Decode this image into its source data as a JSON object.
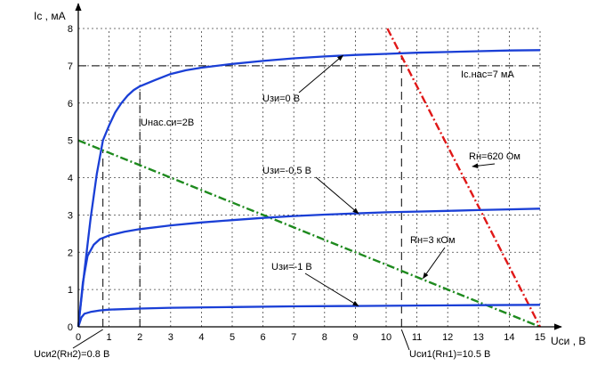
{
  "chart_data": {
    "type": "line",
    "ylabel": "Ic , мА",
    "xlabel": "Uси , В",
    "xlim": [
      0,
      15
    ],
    "ylim": [
      0,
      8
    ],
    "x_ticks": [
      "0",
      "1",
      "2",
      "3",
      "4",
      "5",
      "6",
      "7",
      "8",
      "9",
      "10",
      "11",
      "12",
      "13",
      "14",
      "15"
    ],
    "y_ticks": [
      "0",
      "1",
      "2",
      "3",
      "4",
      "5",
      "6",
      "7",
      "8"
    ],
    "grid": true,
    "series": [
      {
        "name": "Uзи=0 В",
        "color": "#1a3fd6",
        "points": [
          [
            0,
            0
          ],
          [
            0.2,
            1.5
          ],
          [
            0.4,
            2.9
          ],
          [
            0.6,
            4.1
          ],
          [
            0.8,
            5.0
          ],
          [
            1.0,
            5.4
          ],
          [
            1.2,
            5.75
          ],
          [
            1.4,
            6.0
          ],
          [
            1.6,
            6.2
          ],
          [
            1.8,
            6.35
          ],
          [
            2.0,
            6.45
          ],
          [
            2.5,
            6.62
          ],
          [
            3,
            6.78
          ],
          [
            3.5,
            6.88
          ],
          [
            4,
            6.95
          ],
          [
            5,
            7.05
          ],
          [
            6,
            7.13
          ],
          [
            7,
            7.2
          ],
          [
            8,
            7.25
          ],
          [
            9,
            7.29
          ],
          [
            10,
            7.32
          ],
          [
            11,
            7.35
          ],
          [
            12,
            7.37
          ],
          [
            13,
            7.39
          ],
          [
            14,
            7.41
          ],
          [
            15,
            7.42
          ]
        ]
      },
      {
        "name": "Uзи=-0,5 В",
        "color": "#1a3fd6",
        "points": [
          [
            0,
            0
          ],
          [
            0.15,
            1.2
          ],
          [
            0.3,
            1.9
          ],
          [
            0.5,
            2.2
          ],
          [
            0.7,
            2.35
          ],
          [
            1,
            2.45
          ],
          [
            1.5,
            2.55
          ],
          [
            2,
            2.62
          ],
          [
            3,
            2.72
          ],
          [
            4,
            2.8
          ],
          [
            5,
            2.86
          ],
          [
            6,
            2.92
          ],
          [
            7,
            2.97
          ],
          [
            8,
            3.01
          ],
          [
            9,
            3.04
          ],
          [
            10,
            3.07
          ],
          [
            11,
            3.09
          ],
          [
            12,
            3.11
          ],
          [
            13,
            3.13
          ],
          [
            14,
            3.15
          ],
          [
            15,
            3.17
          ]
        ]
      },
      {
        "name": "Uзи=-1 В",
        "color": "#1a3fd6",
        "points": [
          [
            0,
            0
          ],
          [
            0.1,
            0.25
          ],
          [
            0.2,
            0.35
          ],
          [
            0.4,
            0.4
          ],
          [
            0.7,
            0.44
          ],
          [
            1,
            0.46
          ],
          [
            2,
            0.49
          ],
          [
            3,
            0.51
          ],
          [
            5,
            0.53
          ],
          [
            7,
            0.55
          ],
          [
            9,
            0.56
          ],
          [
            11,
            0.57
          ],
          [
            13,
            0.58
          ],
          [
            15,
            0.59
          ]
        ]
      }
    ],
    "load_lines": [
      {
        "name": "Rн=3 кОм",
        "color": "#1e8a1e",
        "points": [
          [
            0,
            5
          ],
          [
            15,
            0
          ]
        ]
      },
      {
        "name": "Rн=620 Ом",
        "color": "#e01818",
        "points": [
          [
            10.04,
            8
          ],
          [
            15,
            0
          ]
        ]
      }
    ],
    "dashed_lines": [
      {
        "orientation": "vertical",
        "x": 0.8,
        "y_max": 4.73
      },
      {
        "orientation": "vertical",
        "x": 2,
        "y_max": 6.45
      },
      {
        "orientation": "vertical",
        "x": 10.5,
        "y_max": 7.25
      },
      {
        "orientation": "horizontal",
        "y": 7
      }
    ],
    "annotations": [
      {
        "text": "Uзи=0 В",
        "arrow_to": [
          8.6,
          7.28
        ]
      },
      {
        "text": "Uзи=-0,5 В",
        "arrow_to": [
          9.1,
          3.04
        ]
      },
      {
        "text": "Uзи=-1 В",
        "arrow_to": [
          9.1,
          0.56
        ]
      },
      {
        "text": "Rн=620 Ом",
        "arrow_to": [
          12.8,
          4.3
        ]
      },
      {
        "text": "Rн=3 кОм",
        "arrow_to": [
          11.2,
          1.3
        ]
      },
      {
        "text": "Uнас.си=2В"
      },
      {
        "text": "Ic.нас=7 мА"
      },
      {
        "text": "Uси2(Rн2)=0.8 В"
      },
      {
        "text": "Uси1(Rн1)=10.5 В"
      }
    ]
  }
}
